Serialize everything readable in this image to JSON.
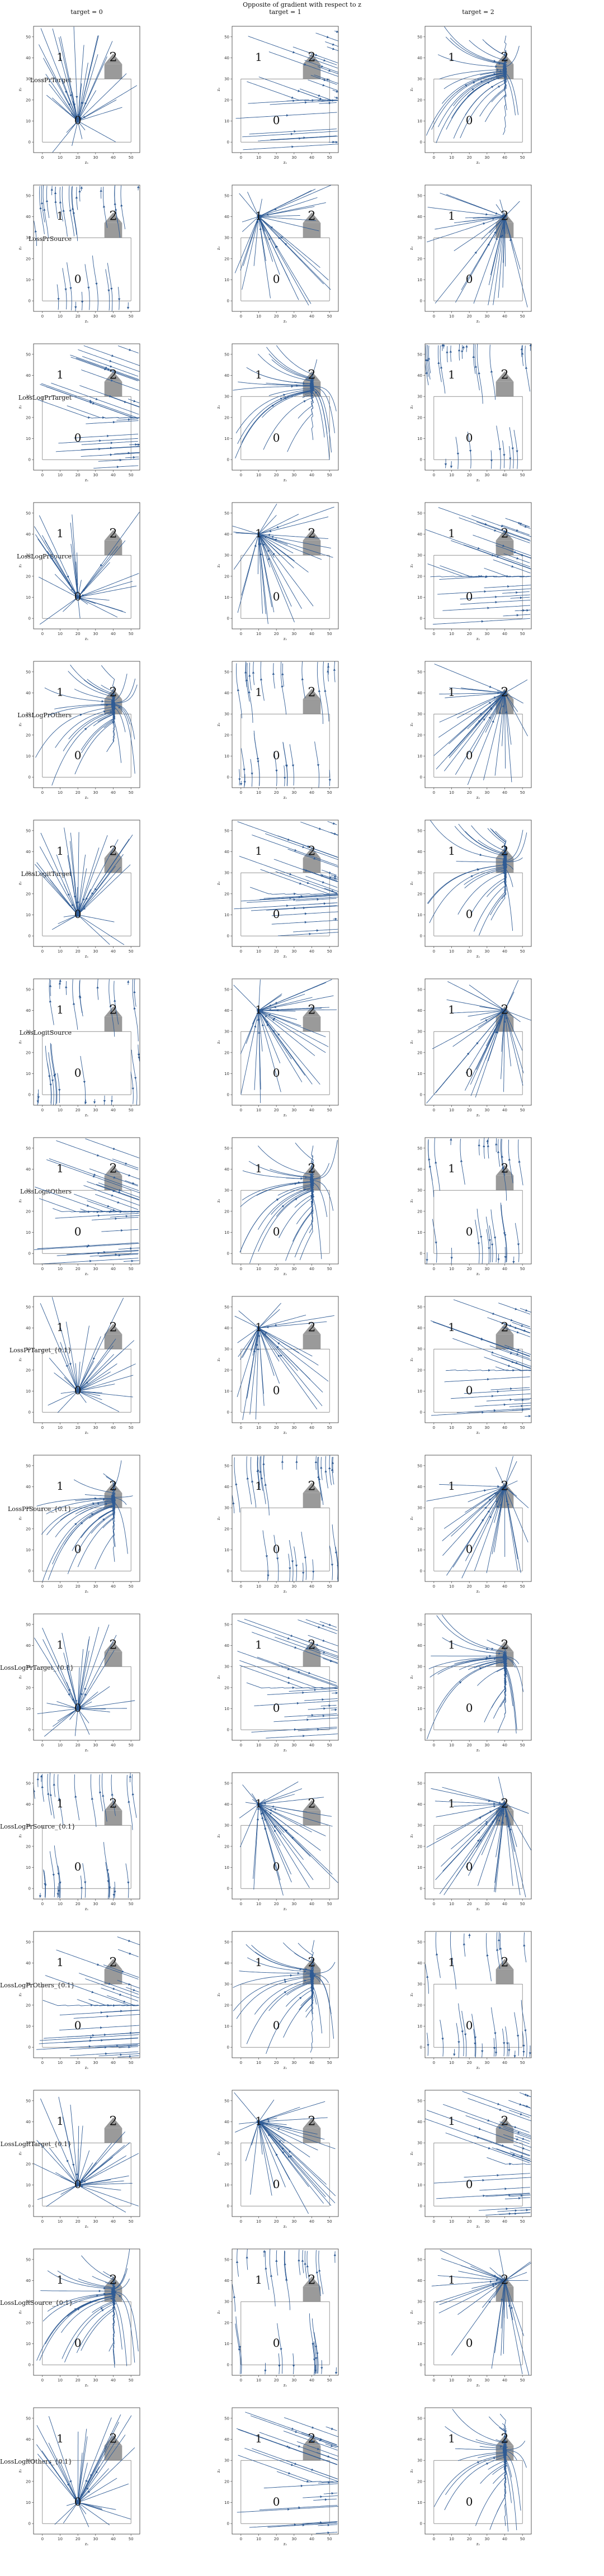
{
  "figure": {
    "title": "Opposite of gradient with respect to z",
    "columns": [
      "target = 0",
      "target = 1",
      "target = 2"
    ],
    "rows": [
      "LossPrTarget",
      "LossPrSource",
      "LossLogPrTarget",
      "LossLogPrSource",
      "LossLogPrOthers",
      "LossLogitTarget",
      "LossLogitSource",
      "LossLogitOthers",
      "LossPrTarget_{0.1}",
      "LossPrSource_{0.1}",
      "LossLogPrTarget_{0.1}",
      "LossLogPrSource_{0.1}",
      "LossLogPrOthers_{0.1}",
      "LossLogitTarget_{0.1}",
      "LossLogitSource_{0.1}",
      "LossLogitOthers_{0.1}"
    ]
  },
  "chart_data": {
    "type": "streamplot",
    "xlabel": "z₁",
    "ylabel": "z₂",
    "xlim": [
      -5,
      55
    ],
    "ylim": [
      -5,
      55
    ],
    "xticks": [
      0,
      10,
      20,
      30,
      40,
      50
    ],
    "yticks": [
      0,
      10,
      20,
      30,
      40,
      50
    ],
    "region_labels": [
      {
        "label": "0",
        "x": 20,
        "y": 10
      },
      {
        "label": "1",
        "x": 10,
        "y": 40
      },
      {
        "label": "2",
        "x": 40,
        "y": 40
      }
    ],
    "colors": {
      "stream": "#2f5b94",
      "region_fill": "#9a9a9a",
      "border": "#333333"
    }
  }
}
